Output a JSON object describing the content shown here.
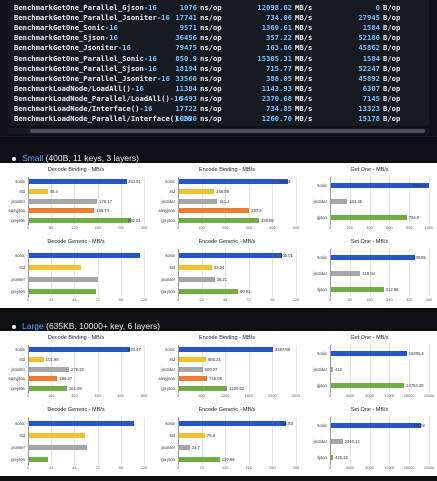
{
  "terminal": {
    "lines": [
      {
        "name": "BenchmarkGetOne_Parallel_Gjson",
        "suffix": "-16",
        "ns": "1076",
        "ns_unit": "ns/op",
        "mbs": "12098.62",
        "mbs_unit": "MB/s",
        "b": "0",
        "b_unit": "B/op"
      },
      {
        "name": "BenchmarkGetOne_Parallel_Jsoniter",
        "suffix": "-16",
        "ns": "17741",
        "ns_unit": "ns/op",
        "mbs": "734.06",
        "mbs_unit": "MB/s",
        "b": "27945",
        "b_unit": "B/op"
      },
      {
        "name": "BenchmarkGetOne_Sonic",
        "suffix": "-16",
        "ns": "9571",
        "ns_unit": "ns/op",
        "mbs": "1360.61",
        "mbs_unit": "MB/s",
        "b": "1584",
        "b_unit": "B/op"
      },
      {
        "name": "BenchmarkGetOne_Sjson",
        "suffix": "-16",
        "ns": "36456",
        "ns_unit": "ns/op",
        "mbs": "357.22",
        "mbs_unit": "MB/s",
        "b": "52180",
        "b_unit": "B/op"
      },
      {
        "name": "BenchmarkGetOne_Jsoniter",
        "suffix": "-16",
        "ns": "79475",
        "ns_unit": "ns/op",
        "mbs": "163.86",
        "mbs_unit": "MB/s",
        "b": "45862",
        "b_unit": "B/op"
      },
      {
        "name": "BenchmarkGetOne_Parallel_Sonic",
        "suffix": "-16",
        "ns": "850.9",
        "ns_unit": "ns/op",
        "mbs": "15305.31",
        "mbs_unit": "MB/s",
        "b": "1584",
        "b_unit": "B/op"
      },
      {
        "name": "BenchmarkGetOne_Parallel_Sjson",
        "suffix": "-16",
        "ns": "18194",
        "ns_unit": "ns/op",
        "mbs": "715.77",
        "mbs_unit": "MB/s",
        "b": "52247",
        "b_unit": "B/op"
      },
      {
        "name": "BenchmarkGetOne_Parallel_Jsoniter",
        "suffix": "-16",
        "ns": "33560",
        "ns_unit": "ns/op",
        "mbs": "388.05",
        "mbs_unit": "MB/s",
        "b": "45892",
        "b_unit": "B/op"
      },
      {
        "name": "BenchmarkLoadNode/LoadAll()",
        "suffix": "-16",
        "ns": "11384",
        "ns_unit": "ns/op",
        "mbs": "1143.93",
        "mbs_unit": "MB/s",
        "b": "6307",
        "b_unit": "B/op"
      },
      {
        "name": "BenchmarkLoadNode_Parallel/LoadAll()",
        "suffix": "-16",
        "ns": "5493",
        "ns_unit": "ns/op",
        "mbs": "2370.68",
        "mbs_unit": "MB/s",
        "b": "7145",
        "b_unit": "B/op"
      },
      {
        "name": "BenchmarkLoadNode/Interface()",
        "suffix": "-16",
        "ns": "17722",
        "ns_unit": "ns/op",
        "mbs": "734.85",
        "mbs_unit": "MB/s",
        "b": "13323",
        "b_unit": "B/op"
      },
      {
        "name": "BenchmarkLoadNode_Parallel/Interface()",
        "suffix": "-16",
        "ns": "10330",
        "ns_unit": "ns/op",
        "mbs": "1260.70",
        "mbs_unit": "MB/s",
        "b": "15178",
        "b_unit": "B/op"
      }
    ]
  },
  "sections": {
    "small": {
      "label": "Small",
      "desc": " (400B, 11 keys, 3 layers)"
    },
    "large": {
      "label": "Large",
      "desc": " (635KB, 10000+ key, 6 layers)"
    }
  },
  "colors": {
    "sonic": "#2457c5",
    "std": "#f2c12e",
    "gray": "#a6a6a6",
    "orange": "#ed7d31",
    "green": "#70ad47"
  },
  "chart_data": [
    {
      "panel": "small",
      "type": "bar",
      "title": "Decode Binding - MB/s",
      "categories": [
        "sonic",
        "std",
        "jsoniter",
        "easyjson",
        "go-json"
      ],
      "values": [
        253.91,
        48.4,
        176.17,
        168.74,
        262.51
      ],
      "colors": [
        "sonic",
        "std",
        "gray",
        "orange",
        "green"
      ],
      "value_labels": [
        "253.91",
        "48.4",
        "176.17",
        "168.74",
        "262.51"
      ],
      "xlim": [
        0,
        300
      ]
    },
    {
      "panel": "small",
      "type": "bar",
      "title": "Encode Binding - MB/s",
      "categories": [
        "sonic",
        "std",
        "jsoniter",
        "easyjson",
        "go-json"
      ],
      "values": [
        463.2,
        148.89,
        161.4,
        297.3,
        338.85
      ],
      "colors": [
        "sonic",
        "std",
        "gray",
        "orange",
        "green"
      ],
      "value_labels": [
        "463.2",
        "148.89",
        "161.4",
        "297.3",
        "338.85"
      ],
      "xlim": [
        0,
        500
      ]
    },
    {
      "panel": "small",
      "type": "bar",
      "title": "Get One - MB/s",
      "categories": [
        "sonic",
        "jsoniter",
        "gjson"
      ],
      "values": [
        986.04,
        163.45,
        764.9
      ],
      "colors": [
        "sonic",
        "gray",
        "green"
      ],
      "value_labels": [
        "986.04",
        "163.45",
        "764.9"
      ],
      "xlim": [
        0,
        1000
      ]
    },
    {
      "panel": "small",
      "type": "bar",
      "title": "Decode Generic - MB/s",
      "categories": [
        "sonic",
        "std",
        "jsoniter",
        "go-json"
      ],
      "values": [
        115.2,
        53.4,
        71.3,
        69.8
      ],
      "colors": [
        "sonic",
        "std",
        "gray",
        "green"
      ],
      "value_labels": [
        "",
        "",
        "",
        ""
      ],
      "xlim": [
        0,
        120
      ]
    },
    {
      "panel": "small",
      "type": "bar",
      "title": "Encode Generic - MB/s",
      "categories": [
        "sonic",
        "std",
        "jsoniter",
        "go-json"
      ],
      "values": [
        105.01,
        33.34,
        36.21,
        60.01
      ],
      "colors": [
        "sonic",
        "std",
        "gray",
        "green"
      ],
      "value_labels": [
        "105.01",
        "33.34",
        "36.21",
        "60.01"
      ],
      "xlim": [
        0,
        120
      ]
    },
    {
      "panel": "small",
      "type": "bar",
      "title": "Set One - MB/s",
      "categories": [
        "sonic",
        "jsoniter",
        "sjson"
      ],
      "values": [
        339.85,
        118.94,
        212.96
      ],
      "colors": [
        "sonic",
        "gray",
        "green"
      ],
      "value_labels": [
        "339.85",
        "118.94",
        "212.96"
      ],
      "xlim": [
        0,
        400
      ]
    },
    {
      "panel": "large",
      "type": "bar",
      "title": "Decode Binding - MB/s",
      "categories": [
        "sonic",
        "std",
        "jsoniter",
        "easyjson",
        "go-json"
      ],
      "values": [
        693.47,
        101.99,
        276.29,
        196.27,
        261.69
      ],
      "colors": [
        "sonic",
        "std",
        "gray",
        "orange",
        "green"
      ],
      "value_labels": [
        "693.47",
        "101.99",
        "276.29",
        "196.27",
        "261.69"
      ],
      "xlim": [
        0,
        800
      ]
    },
    {
      "panel": "large",
      "type": "bar",
      "title": "Encode Binding - MB/s",
      "categories": [
        "sonic",
        "std",
        "jsoniter",
        "easyjson",
        "go-json"
      ],
      "values": [
        2387.99,
        685.24,
        600.27,
        715.08,
        1220.62
      ],
      "colors": [
        "sonic",
        "std",
        "gray",
        "orange",
        "green"
      ],
      "value_labels": [
        "2387.99",
        "685.24",
        "600.27",
        "715.08",
        "1220.62"
      ],
      "xlim": [
        0,
        3000
      ]
    },
    {
      "panel": "large",
      "type": "bar",
      "title": "Get One - MB/s",
      "categories": [
        "sonic",
        "jsoniter",
        "gjson"
      ],
      "values": [
        15305.6,
        412,
        14784.28
      ],
      "colors": [
        "sonic",
        "gray",
        "green"
      ],
      "value_labels": [
        "15305.6",
        "412",
        "14784.28"
      ],
      "xlim": [
        0,
        20000
      ]
    },
    {
      "panel": "large",
      "type": "bar",
      "title": "Decode Generic - MB/s",
      "categories": [
        "sonic",
        "std",
        "jsoniter",
        "go-json"
      ],
      "values": [
        108.2,
        58.3,
        60.1,
        19.4
      ],
      "colors": [
        "sonic",
        "std",
        "gray",
        "green"
      ],
      "value_labels": [
        "",
        "",
        "",
        ""
      ],
      "xlim": [
        0,
        120
      ]
    },
    {
      "panel": "large",
      "type": "bar",
      "title": "Encode Generic - MB/s",
      "categories": [
        "sonic",
        "std",
        "jsoniter",
        "go-json"
      ],
      "values": [
        318.83,
        76.9,
        31.7,
        120.69
      ],
      "colors": [
        "sonic",
        "std",
        "gray",
        "green"
      ],
      "value_labels": [
        "318.83",
        "76.9",
        "31.7",
        "120.69"
      ],
      "xlim": [
        0,
        350
      ]
    },
    {
      "panel": "large",
      "type": "bar",
      "title": "Set One - MB/s",
      "categories": [
        "sonic",
        "jsoniter",
        "sjson"
      ],
      "values": [
        18128,
        2340.12,
        425.26
      ],
      "colors": [
        "sonic",
        "gray",
        "green"
      ],
      "value_labels": [
        "18128",
        "2340.12",
        "425.26"
      ],
      "xlim": [
        0,
        20000
      ]
    }
  ]
}
